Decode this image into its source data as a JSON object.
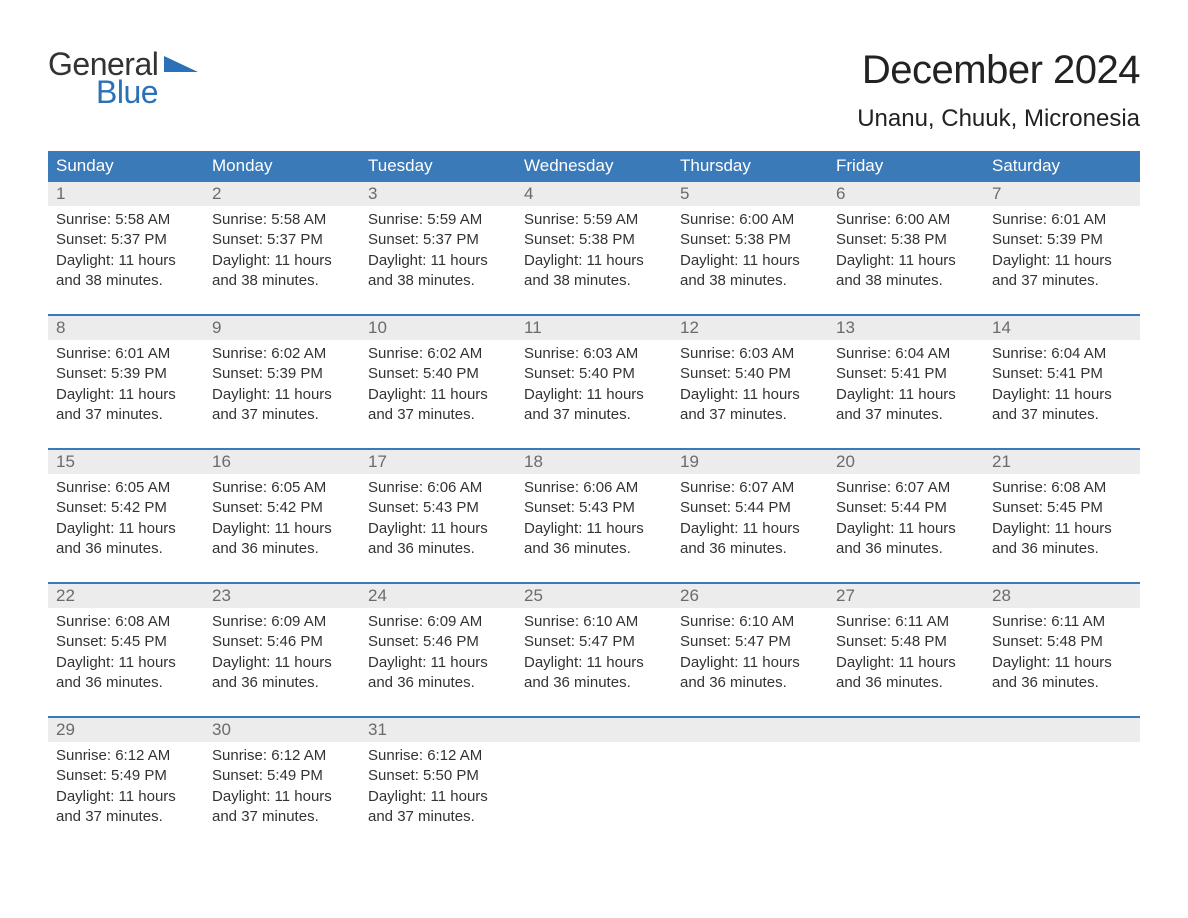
{
  "logo": {
    "line1": "General",
    "line2": "Blue",
    "accent_color": "#2b71b8"
  },
  "title": "December 2024",
  "location": "Unanu, Chuuk, Micronesia",
  "colors": {
    "header_bg": "#3a7ab8",
    "header_text": "#ffffff",
    "daynum_bg": "#ececec",
    "daynum_text": "#6b6b6b",
    "body_text": "#333333",
    "week_border": "#3a7ab8"
  },
  "weekdays": [
    "Sunday",
    "Monday",
    "Tuesday",
    "Wednesday",
    "Thursday",
    "Friday",
    "Saturday"
  ],
  "days": [
    {
      "n": 1,
      "sunrise": "5:58 AM",
      "sunset": "5:37 PM",
      "daylight": "11 hours and 38 minutes."
    },
    {
      "n": 2,
      "sunrise": "5:58 AM",
      "sunset": "5:37 PM",
      "daylight": "11 hours and 38 minutes."
    },
    {
      "n": 3,
      "sunrise": "5:59 AM",
      "sunset": "5:37 PM",
      "daylight": "11 hours and 38 minutes."
    },
    {
      "n": 4,
      "sunrise": "5:59 AM",
      "sunset": "5:38 PM",
      "daylight": "11 hours and 38 minutes."
    },
    {
      "n": 5,
      "sunrise": "6:00 AM",
      "sunset": "5:38 PM",
      "daylight": "11 hours and 38 minutes."
    },
    {
      "n": 6,
      "sunrise": "6:00 AM",
      "sunset": "5:38 PM",
      "daylight": "11 hours and 38 minutes."
    },
    {
      "n": 7,
      "sunrise": "6:01 AM",
      "sunset": "5:39 PM",
      "daylight": "11 hours and 37 minutes."
    },
    {
      "n": 8,
      "sunrise": "6:01 AM",
      "sunset": "5:39 PM",
      "daylight": "11 hours and 37 minutes."
    },
    {
      "n": 9,
      "sunrise": "6:02 AM",
      "sunset": "5:39 PM",
      "daylight": "11 hours and 37 minutes."
    },
    {
      "n": 10,
      "sunrise": "6:02 AM",
      "sunset": "5:40 PM",
      "daylight": "11 hours and 37 minutes."
    },
    {
      "n": 11,
      "sunrise": "6:03 AM",
      "sunset": "5:40 PM",
      "daylight": "11 hours and 37 minutes."
    },
    {
      "n": 12,
      "sunrise": "6:03 AM",
      "sunset": "5:40 PM",
      "daylight": "11 hours and 37 minutes."
    },
    {
      "n": 13,
      "sunrise": "6:04 AM",
      "sunset": "5:41 PM",
      "daylight": "11 hours and 37 minutes."
    },
    {
      "n": 14,
      "sunrise": "6:04 AM",
      "sunset": "5:41 PM",
      "daylight": "11 hours and 37 minutes."
    },
    {
      "n": 15,
      "sunrise": "6:05 AM",
      "sunset": "5:42 PM",
      "daylight": "11 hours and 36 minutes."
    },
    {
      "n": 16,
      "sunrise": "6:05 AM",
      "sunset": "5:42 PM",
      "daylight": "11 hours and 36 minutes."
    },
    {
      "n": 17,
      "sunrise": "6:06 AM",
      "sunset": "5:43 PM",
      "daylight": "11 hours and 36 minutes."
    },
    {
      "n": 18,
      "sunrise": "6:06 AM",
      "sunset": "5:43 PM",
      "daylight": "11 hours and 36 minutes."
    },
    {
      "n": 19,
      "sunrise": "6:07 AM",
      "sunset": "5:44 PM",
      "daylight": "11 hours and 36 minutes."
    },
    {
      "n": 20,
      "sunrise": "6:07 AM",
      "sunset": "5:44 PM",
      "daylight": "11 hours and 36 minutes."
    },
    {
      "n": 21,
      "sunrise": "6:08 AM",
      "sunset": "5:45 PM",
      "daylight": "11 hours and 36 minutes."
    },
    {
      "n": 22,
      "sunrise": "6:08 AM",
      "sunset": "5:45 PM",
      "daylight": "11 hours and 36 minutes."
    },
    {
      "n": 23,
      "sunrise": "6:09 AM",
      "sunset": "5:46 PM",
      "daylight": "11 hours and 36 minutes."
    },
    {
      "n": 24,
      "sunrise": "6:09 AM",
      "sunset": "5:46 PM",
      "daylight": "11 hours and 36 minutes."
    },
    {
      "n": 25,
      "sunrise": "6:10 AM",
      "sunset": "5:47 PM",
      "daylight": "11 hours and 36 minutes."
    },
    {
      "n": 26,
      "sunrise": "6:10 AM",
      "sunset": "5:47 PM",
      "daylight": "11 hours and 36 minutes."
    },
    {
      "n": 27,
      "sunrise": "6:11 AM",
      "sunset": "5:48 PM",
      "daylight": "11 hours and 36 minutes."
    },
    {
      "n": 28,
      "sunrise": "6:11 AM",
      "sunset": "5:48 PM",
      "daylight": "11 hours and 36 minutes."
    },
    {
      "n": 29,
      "sunrise": "6:12 AM",
      "sunset": "5:49 PM",
      "daylight": "11 hours and 37 minutes."
    },
    {
      "n": 30,
      "sunrise": "6:12 AM",
      "sunset": "5:49 PM",
      "daylight": "11 hours and 37 minutes."
    },
    {
      "n": 31,
      "sunrise": "6:12 AM",
      "sunset": "5:50 PM",
      "daylight": "11 hours and 37 minutes."
    }
  ],
  "labels": {
    "sunrise": "Sunrise:",
    "sunset": "Sunset:",
    "daylight": "Daylight:"
  },
  "layout": {
    "columns": 7,
    "first_day_column": 0,
    "total_cells": 35
  }
}
